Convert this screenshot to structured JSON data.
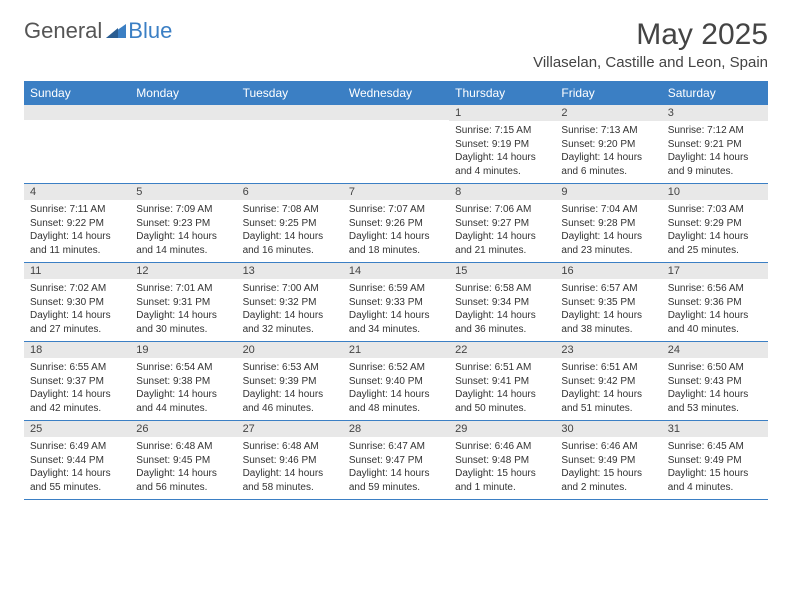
{
  "logo": {
    "text1": "General",
    "text2": "Blue"
  },
  "title": "May 2025",
  "location": "Villaselan, Castille and Leon, Spain",
  "colors": {
    "header_bg": "#3b7fc4",
    "header_text": "#ffffff",
    "daynum_bg": "#e8e8e8",
    "border": "#3b7fc4",
    "text": "#333333",
    "logo_gray": "#555555",
    "logo_blue": "#3b7fc4"
  },
  "fonts": {
    "title_size": 30,
    "location_size": 15,
    "header_size": 12,
    "daynum_size": 11,
    "body_size": 10
  },
  "day_names": [
    "Sunday",
    "Monday",
    "Tuesday",
    "Wednesday",
    "Thursday",
    "Friday",
    "Saturday"
  ],
  "weeks": [
    [
      {
        "n": "",
        "sr": "",
        "ss": "",
        "dl": ""
      },
      {
        "n": "",
        "sr": "",
        "ss": "",
        "dl": ""
      },
      {
        "n": "",
        "sr": "",
        "ss": "",
        "dl": ""
      },
      {
        "n": "",
        "sr": "",
        "ss": "",
        "dl": ""
      },
      {
        "n": "1",
        "sr": "Sunrise: 7:15 AM",
        "ss": "Sunset: 9:19 PM",
        "dl": "Daylight: 14 hours and 4 minutes."
      },
      {
        "n": "2",
        "sr": "Sunrise: 7:13 AM",
        "ss": "Sunset: 9:20 PM",
        "dl": "Daylight: 14 hours and 6 minutes."
      },
      {
        "n": "3",
        "sr": "Sunrise: 7:12 AM",
        "ss": "Sunset: 9:21 PM",
        "dl": "Daylight: 14 hours and 9 minutes."
      }
    ],
    [
      {
        "n": "4",
        "sr": "Sunrise: 7:11 AM",
        "ss": "Sunset: 9:22 PM",
        "dl": "Daylight: 14 hours and 11 minutes."
      },
      {
        "n": "5",
        "sr": "Sunrise: 7:09 AM",
        "ss": "Sunset: 9:23 PM",
        "dl": "Daylight: 14 hours and 14 minutes."
      },
      {
        "n": "6",
        "sr": "Sunrise: 7:08 AM",
        "ss": "Sunset: 9:25 PM",
        "dl": "Daylight: 14 hours and 16 minutes."
      },
      {
        "n": "7",
        "sr": "Sunrise: 7:07 AM",
        "ss": "Sunset: 9:26 PM",
        "dl": "Daylight: 14 hours and 18 minutes."
      },
      {
        "n": "8",
        "sr": "Sunrise: 7:06 AM",
        "ss": "Sunset: 9:27 PM",
        "dl": "Daylight: 14 hours and 21 minutes."
      },
      {
        "n": "9",
        "sr": "Sunrise: 7:04 AM",
        "ss": "Sunset: 9:28 PM",
        "dl": "Daylight: 14 hours and 23 minutes."
      },
      {
        "n": "10",
        "sr": "Sunrise: 7:03 AM",
        "ss": "Sunset: 9:29 PM",
        "dl": "Daylight: 14 hours and 25 minutes."
      }
    ],
    [
      {
        "n": "11",
        "sr": "Sunrise: 7:02 AM",
        "ss": "Sunset: 9:30 PM",
        "dl": "Daylight: 14 hours and 27 minutes."
      },
      {
        "n": "12",
        "sr": "Sunrise: 7:01 AM",
        "ss": "Sunset: 9:31 PM",
        "dl": "Daylight: 14 hours and 30 minutes."
      },
      {
        "n": "13",
        "sr": "Sunrise: 7:00 AM",
        "ss": "Sunset: 9:32 PM",
        "dl": "Daylight: 14 hours and 32 minutes."
      },
      {
        "n": "14",
        "sr": "Sunrise: 6:59 AM",
        "ss": "Sunset: 9:33 PM",
        "dl": "Daylight: 14 hours and 34 minutes."
      },
      {
        "n": "15",
        "sr": "Sunrise: 6:58 AM",
        "ss": "Sunset: 9:34 PM",
        "dl": "Daylight: 14 hours and 36 minutes."
      },
      {
        "n": "16",
        "sr": "Sunrise: 6:57 AM",
        "ss": "Sunset: 9:35 PM",
        "dl": "Daylight: 14 hours and 38 minutes."
      },
      {
        "n": "17",
        "sr": "Sunrise: 6:56 AM",
        "ss": "Sunset: 9:36 PM",
        "dl": "Daylight: 14 hours and 40 minutes."
      }
    ],
    [
      {
        "n": "18",
        "sr": "Sunrise: 6:55 AM",
        "ss": "Sunset: 9:37 PM",
        "dl": "Daylight: 14 hours and 42 minutes."
      },
      {
        "n": "19",
        "sr": "Sunrise: 6:54 AM",
        "ss": "Sunset: 9:38 PM",
        "dl": "Daylight: 14 hours and 44 minutes."
      },
      {
        "n": "20",
        "sr": "Sunrise: 6:53 AM",
        "ss": "Sunset: 9:39 PM",
        "dl": "Daylight: 14 hours and 46 minutes."
      },
      {
        "n": "21",
        "sr": "Sunrise: 6:52 AM",
        "ss": "Sunset: 9:40 PM",
        "dl": "Daylight: 14 hours and 48 minutes."
      },
      {
        "n": "22",
        "sr": "Sunrise: 6:51 AM",
        "ss": "Sunset: 9:41 PM",
        "dl": "Daylight: 14 hours and 50 minutes."
      },
      {
        "n": "23",
        "sr": "Sunrise: 6:51 AM",
        "ss": "Sunset: 9:42 PM",
        "dl": "Daylight: 14 hours and 51 minutes."
      },
      {
        "n": "24",
        "sr": "Sunrise: 6:50 AM",
        "ss": "Sunset: 9:43 PM",
        "dl": "Daylight: 14 hours and 53 minutes."
      }
    ],
    [
      {
        "n": "25",
        "sr": "Sunrise: 6:49 AM",
        "ss": "Sunset: 9:44 PM",
        "dl": "Daylight: 14 hours and 55 minutes."
      },
      {
        "n": "26",
        "sr": "Sunrise: 6:48 AM",
        "ss": "Sunset: 9:45 PM",
        "dl": "Daylight: 14 hours and 56 minutes."
      },
      {
        "n": "27",
        "sr": "Sunrise: 6:48 AM",
        "ss": "Sunset: 9:46 PM",
        "dl": "Daylight: 14 hours and 58 minutes."
      },
      {
        "n": "28",
        "sr": "Sunrise: 6:47 AM",
        "ss": "Sunset: 9:47 PM",
        "dl": "Daylight: 14 hours and 59 minutes."
      },
      {
        "n": "29",
        "sr": "Sunrise: 6:46 AM",
        "ss": "Sunset: 9:48 PM",
        "dl": "Daylight: 15 hours and 1 minute."
      },
      {
        "n": "30",
        "sr": "Sunrise: 6:46 AM",
        "ss": "Sunset: 9:49 PM",
        "dl": "Daylight: 15 hours and 2 minutes."
      },
      {
        "n": "31",
        "sr": "Sunrise: 6:45 AM",
        "ss": "Sunset: 9:49 PM",
        "dl": "Daylight: 15 hours and 4 minutes."
      }
    ]
  ]
}
